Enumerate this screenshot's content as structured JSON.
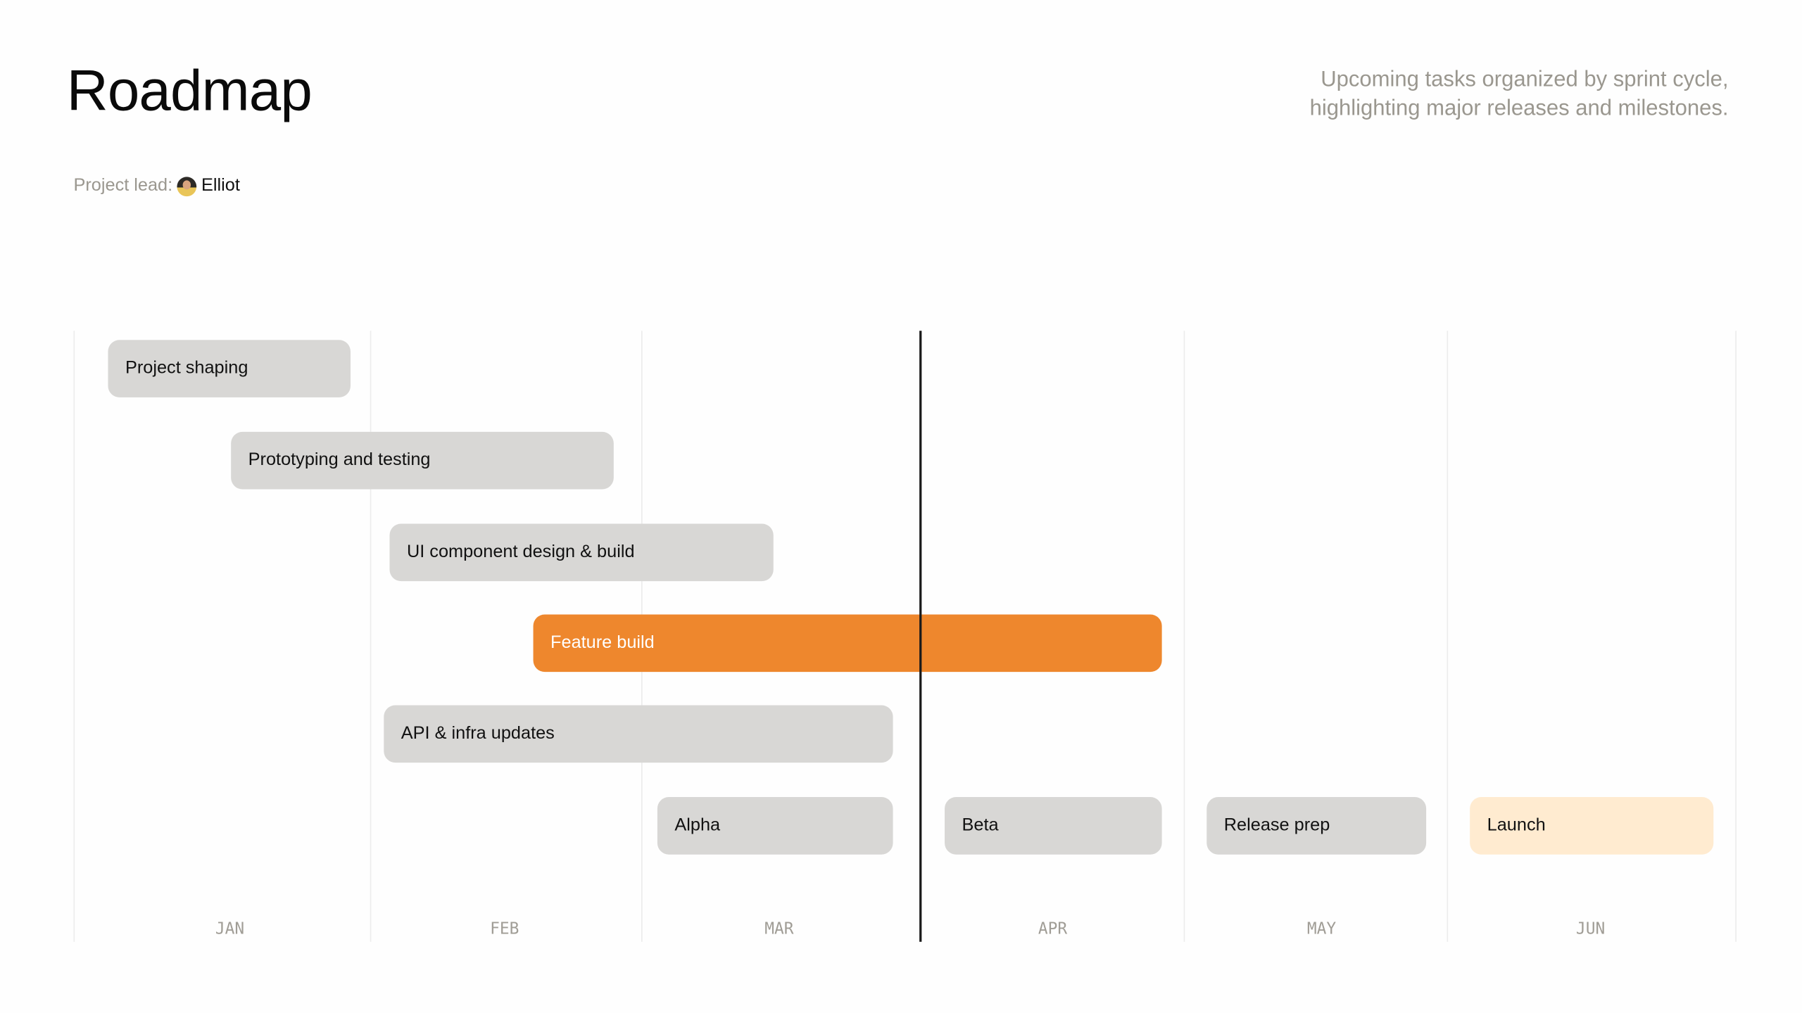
{
  "header": {
    "title": "Roadmap",
    "subtitle_line1": "Upcoming tasks organized by sprint cycle,",
    "subtitle_line2": "highlighting major releases and milestones.",
    "lead_label": "Project lead:",
    "lead_name": "Elliot",
    "lead_avatar_icon": "avatar-photo"
  },
  "timeline": {
    "months": [
      "JAN",
      "FEB",
      "MAR",
      "APR",
      "MAY",
      "JUN"
    ],
    "today_marker": "end of March",
    "tasks": [
      {
        "label": "Project shaping",
        "status": "default"
      },
      {
        "label": "Prototyping and testing",
        "status": "default"
      },
      {
        "label": "UI component design & build",
        "status": "default"
      },
      {
        "label": "Feature build",
        "status": "active"
      },
      {
        "label": "API & infra updates",
        "status": "default"
      },
      {
        "label": "Alpha",
        "status": "default"
      },
      {
        "label": "Beta",
        "status": "default"
      },
      {
        "label": "Release prep",
        "status": "default"
      },
      {
        "label": "Launch",
        "status": "milestone"
      }
    ]
  },
  "colors": {
    "bar_default": "#d8d7d5",
    "bar_active": "#ee872d",
    "bar_milestone": "#ffebd0",
    "muted_text": "#9a978f",
    "today_line": "#1a1a1a"
  }
}
